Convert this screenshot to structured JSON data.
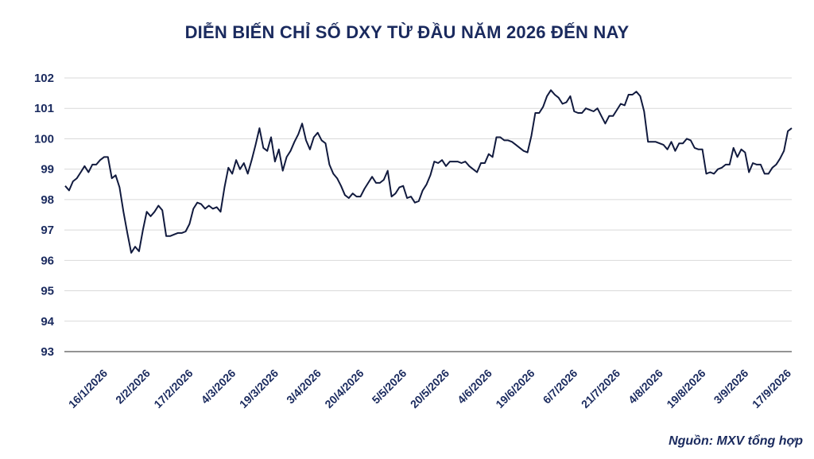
{
  "chart_data": {
    "type": "line",
    "title": "DIỄN BIẾN CHỈ SỐ DXY TỪ ĐẦU NĂM 2026 ĐẾN NAY",
    "source": "Nguồn: MXV tổng hợp",
    "ylim": [
      93,
      102
    ],
    "yticks": [
      93,
      94,
      95,
      96,
      97,
      98,
      99,
      100,
      101,
      102
    ],
    "xtick_labels": [
      "16/1/2026",
      "2/2/2026",
      "17/2/2026",
      "4/3/2026",
      "19/3/2026",
      "3/4/2026",
      "20/4/2026",
      "5/5/2026",
      "20/5/2026",
      "4/6/2026",
      "19/6/2026",
      "6/7/2026",
      "21/7/2026",
      "4/8/2026",
      "19/8/2026",
      "3/9/2026",
      "17/9/2026"
    ],
    "grid": "horizontal",
    "line_color": "#111a3e",
    "series": [
      {
        "values": [
          98.45,
          98.3,
          98.6,
          98.7,
          98.9,
          99.1,
          98.9,
          99.15,
          99.15,
          99.3,
          99.4,
          99.4,
          98.7,
          98.8,
          98.4,
          97.6,
          96.9,
          96.25,
          96.45,
          96.3,
          97.0,
          97.6,
          97.45,
          97.6,
          97.8,
          97.65,
          96.8,
          96.8,
          96.85,
          96.9,
          96.9,
          96.95,
          97.2,
          97.7,
          97.9,
          97.85,
          97.7,
          97.8,
          97.7,
          97.75,
          97.6,
          98.4,
          99.05,
          98.85,
          99.3,
          99.0,
          99.2,
          98.85,
          99.3,
          99.8,
          100.35,
          99.7,
          99.6,
          100.05,
          99.25,
          99.65,
          98.95,
          99.4,
          99.6,
          99.9,
          100.15,
          100.5,
          99.95,
          99.65,
          100.05,
          100.2,
          99.95,
          99.85,
          99.15,
          98.85,
          98.7,
          98.45,
          98.15,
          98.05,
          98.2,
          98.1,
          98.1,
          98.35,
          98.55,
          98.75,
          98.55,
          98.55,
          98.65,
          98.95,
          98.1,
          98.2,
          98.4,
          98.45,
          98.05,
          98.1,
          97.9,
          97.95,
          98.3,
          98.5,
          98.8,
          99.25,
          99.2,
          99.3,
          99.1,
          99.25,
          99.25,
          99.25,
          99.2,
          99.25,
          99.1,
          99.0,
          98.9,
          99.2,
          99.2,
          99.5,
          99.4,
          100.05,
          100.05,
          99.95,
          99.95,
          99.9,
          99.8,
          99.7,
          99.6,
          99.55,
          100.1,
          100.85,
          100.85,
          101.05,
          101.4,
          101.6,
          101.45,
          101.35,
          101.15,
          101.2,
          101.4,
          100.9,
          100.85,
          100.85,
          101.0,
          100.95,
          100.9,
          101.0,
          100.75,
          100.5,
          100.75,
          100.75,
          100.95,
          101.15,
          101.1,
          101.45,
          101.45,
          101.55,
          101.4,
          100.9,
          99.9,
          99.9,
          99.9,
          99.85,
          99.8,
          99.65,
          99.9,
          99.6,
          99.85,
          99.85,
          100.0,
          99.95,
          99.7,
          99.65,
          99.65,
          98.85,
          98.9,
          98.85,
          99.0,
          99.05,
          99.15,
          99.15,
          99.7,
          99.4,
          99.65,
          99.55,
          98.9,
          99.2,
          99.15,
          99.15,
          98.85,
          98.85,
          99.05,
          99.15,
          99.35,
          99.6,
          100.25,
          100.35
        ]
      }
    ]
  }
}
